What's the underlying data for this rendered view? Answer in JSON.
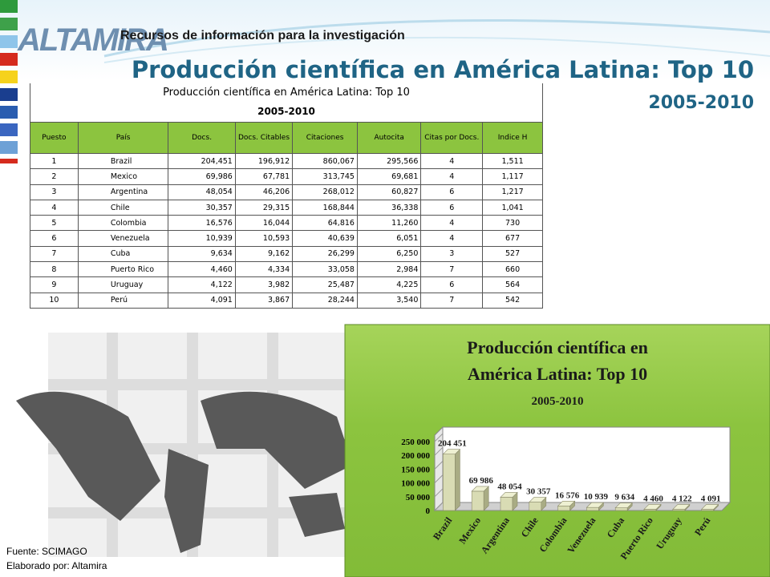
{
  "logo": "ALTAMIRA",
  "header": {
    "tagline": "Recursos de información para la investigación",
    "title": "Producción científica en América Latina: Top 10",
    "subtitle": "2005-2010"
  },
  "table": {
    "title": "Producción científica en América Latina: Top 10",
    "subtitle": "2005-2010",
    "columns": [
      "Puesto",
      "País",
      "Docs.",
      "Docs. Citables",
      "Citaciones",
      "Autocita",
      "Citas por Docs.",
      "Indice H"
    ],
    "rows": [
      [
        "1",
        "Brazil",
        "204,451",
        "196,912",
        "860,067",
        "295,566",
        "4",
        "1,511"
      ],
      [
        "2",
        "Mexico",
        "69,986",
        "67,781",
        "313,745",
        "69,681",
        "4",
        "1,117"
      ],
      [
        "3",
        "Argentina",
        "48,054",
        "46,206",
        "268,012",
        "60,827",
        "6",
        "1,217"
      ],
      [
        "4",
        "Chile",
        "30,357",
        "29,315",
        "168,844",
        "36,338",
        "6",
        "1,041"
      ],
      [
        "5",
        "Colombia",
        "16,576",
        "16,044",
        "64,816",
        "11,260",
        "4",
        "730"
      ],
      [
        "6",
        "Venezuela",
        "10,939",
        "10,593",
        "40,639",
        "6,051",
        "4",
        "677"
      ],
      [
        "7",
        "Cuba",
        "9,634",
        "9,162",
        "26,299",
        "6,250",
        "3",
        "527"
      ],
      [
        "8",
        "Puerto Rico",
        "4,460",
        "4,334",
        "33,058",
        "2,984",
        "7",
        "660"
      ],
      [
        "9",
        "Uruguay",
        "4,122",
        "3,982",
        "25,487",
        "4,225",
        "6",
        "564"
      ],
      [
        "10",
        "Perú",
        "4,091",
        "3,867",
        "28,244",
        "3,540",
        "7",
        "542"
      ]
    ]
  },
  "chart_data": {
    "type": "bar",
    "title": "Producción científica en América Latina: Top 10",
    "subtitle": "2005-2010",
    "categories": [
      "Brazil",
      "Mexico",
      "Argentina",
      "Chile",
      "Colombia",
      "Venezuela",
      "Cuba",
      "Puerto Rico",
      "Uruguay",
      "Perú"
    ],
    "values": [
      204451,
      69986,
      48054,
      30357,
      16576,
      10939,
      9634,
      4460,
      4122,
      4091
    ],
    "value_labels": [
      "204 451",
      "69 986",
      "48 054",
      "30 357",
      "16 576",
      "10 939",
      "9 634",
      "4 460",
      "4 122",
      "4 091"
    ],
    "color": "#d9dcb4",
    "ylim": [
      0,
      250000
    ],
    "yticks": [
      0,
      {
        "value": 50000,
        "label": "50 000"
      },
      {
        "value": 100000,
        "label": "100 000"
      },
      {
        "value": 150000,
        "label": "150 000"
      },
      {
        "value": 200000,
        "label": "200 000"
      },
      {
        "value": 250000,
        "label": "250 000"
      }
    ]
  },
  "footer": {
    "source": "Fuente:   SCIMAGO",
    "author": "Elaborado por: Altamira"
  }
}
